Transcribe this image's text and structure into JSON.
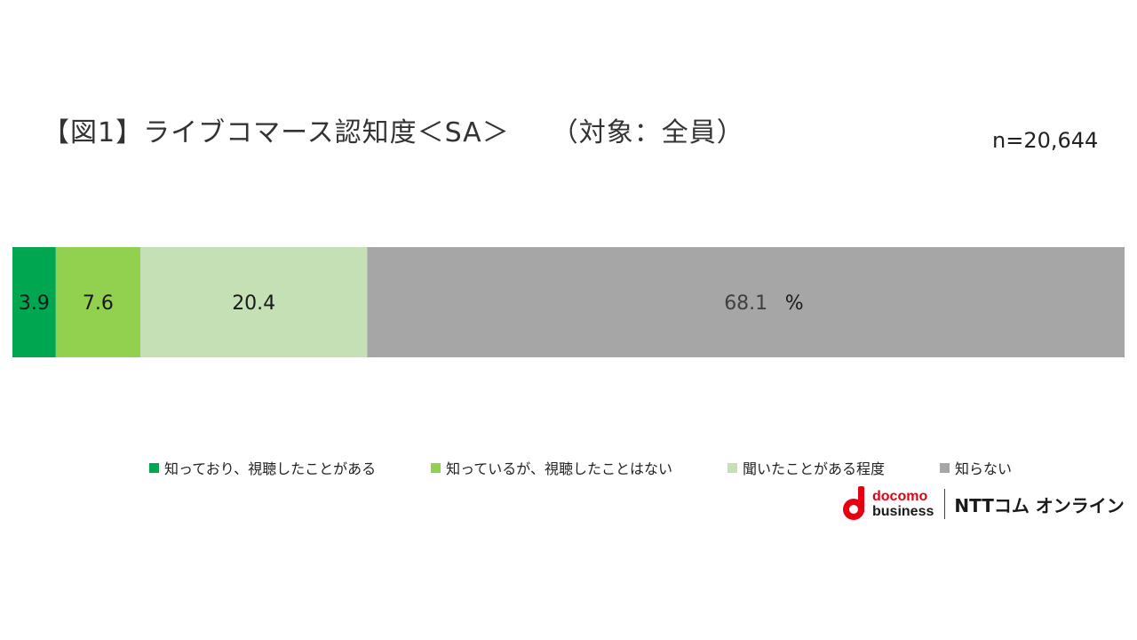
{
  "title": "【図1】ライブコマース認知度＜SA＞　　（対象：全員）",
  "sample_size": "n=20,644",
  "percent_sign": "%",
  "colors": {
    "seg1": "#00a650",
    "seg2": "#92d050",
    "seg3": "#c5e0b4",
    "seg4": "#a6a6a6",
    "logo_red": "#e60012"
  },
  "chart_data": {
    "type": "bar",
    "orientation": "horizontal-stacked-100",
    "categories": [
      ""
    ],
    "series": [
      {
        "name": "知っており、視聴したことがある",
        "values": [
          3.9
        ],
        "label": "3.9"
      },
      {
        "name": "知っているが、視聴したことはない",
        "values": [
          7.6
        ],
        "label": "7.6"
      },
      {
        "name": "聞いたことがある程度",
        "values": [
          20.4
        ],
        "label": "20.4"
      },
      {
        "name": "知らない",
        "values": [
          68.1
        ],
        "label": "68.1"
      }
    ],
    "xlim": [
      0,
      100
    ],
    "legend": "bottom",
    "grid": false
  },
  "logo": {
    "line1": "docomo",
    "line2": "business",
    "brand": "NTTコム オンライン"
  }
}
